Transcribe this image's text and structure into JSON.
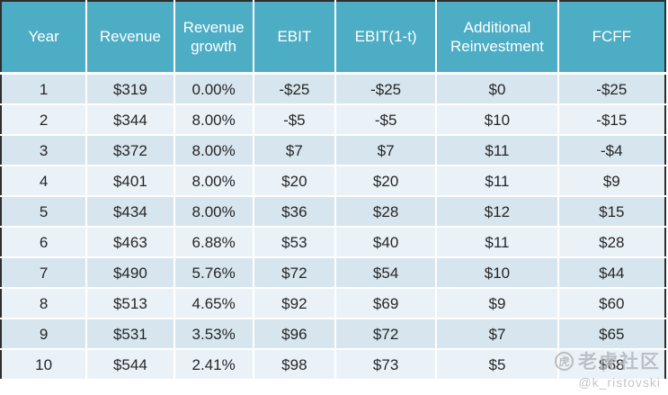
{
  "chart_data": {
    "type": "table",
    "columns": [
      "Year",
      "Revenue",
      "Revenue growth",
      "EBIT",
      "EBIT(1-t)",
      "Additional Reinvestment",
      "FCFF"
    ],
    "rows": [
      [
        "1",
        "$319",
        "0.00%",
        "-$25",
        "-$25",
        "$0",
        "-$25"
      ],
      [
        "2",
        "$344",
        "8.00%",
        "-$5",
        "-$5",
        "$10",
        "-$15"
      ],
      [
        "3",
        "$372",
        "8.00%",
        "$7",
        "$7",
        "$11",
        "-$4"
      ],
      [
        "4",
        "$401",
        "8.00%",
        "$20",
        "$20",
        "$11",
        "$9"
      ],
      [
        "5",
        "$434",
        "8.00%",
        "$36",
        "$28",
        "$12",
        "$15"
      ],
      [
        "6",
        "$463",
        "6.88%",
        "$53",
        "$40",
        "$11",
        "$28"
      ],
      [
        "7",
        "$490",
        "5.76%",
        "$72",
        "$54",
        "$10",
        "$44"
      ],
      [
        "8",
        "$513",
        "4.65%",
        "$92",
        "$69",
        "$9",
        "$60"
      ],
      [
        "9",
        "$531",
        "3.53%",
        "$96",
        "$72",
        "$7",
        "$65"
      ],
      [
        "10",
        "$544",
        "2.41%",
        "$98",
        "$73",
        "$5",
        "$68"
      ]
    ],
    "legend_position": "none",
    "grid": "white gridlines between banded rows"
  },
  "watermark": {
    "logo_glyph": "虎",
    "community": "老虎社区",
    "handle": "@k_ristovski"
  },
  "colors": {
    "header_bg": "#4dadc5",
    "header_text": "#ffffff",
    "row_odd": "#d6e5ee",
    "row_even": "#eaf2f8",
    "body_text": "#262626",
    "outer_border": "#2e2e2e",
    "grid_line": "#ffffff"
  }
}
